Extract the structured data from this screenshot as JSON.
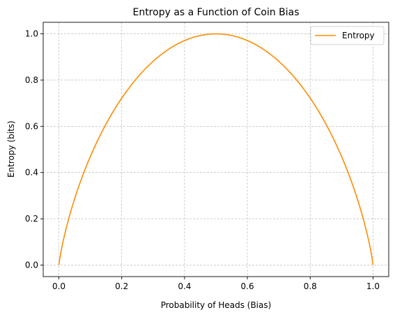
{
  "chart_data": {
    "type": "line",
    "title": "Entropy as a Function of Coin Bias",
    "xlabel": "Probability of Heads (Bias)",
    "ylabel": "Entropy (bits)",
    "xlim": [
      -0.05,
      1.05
    ],
    "ylim": [
      -0.05,
      1.05
    ],
    "xticks": [
      "0.0",
      "0.2",
      "0.4",
      "0.6",
      "0.8",
      "1.0"
    ],
    "yticks": [
      "0.0",
      "0.2",
      "0.4",
      "0.6",
      "0.8",
      "1.0"
    ],
    "grid": true,
    "legend_position": "top-right",
    "series": [
      {
        "name": "Entropy",
        "color": "#ff8c00",
        "x": [
          0.0,
          0.005,
          0.01,
          0.02,
          0.03,
          0.05,
          0.075,
          0.1,
          0.15,
          0.2,
          0.25,
          0.3,
          0.35,
          0.4,
          0.45,
          0.5,
          0.55,
          0.6,
          0.65,
          0.7,
          0.75,
          0.8,
          0.85,
          0.9,
          0.925,
          0.95,
          0.97,
          0.98,
          0.99,
          0.995,
          1.0
        ],
        "y": [
          0.0,
          0.0454,
          0.0808,
          0.1414,
          0.1944,
          0.2864,
          0.3843,
          0.469,
          0.6098,
          0.7219,
          0.8113,
          0.8813,
          0.9341,
          0.971,
          0.9928,
          1.0,
          0.9928,
          0.971,
          0.9341,
          0.8813,
          0.8113,
          0.7219,
          0.6098,
          0.469,
          0.3843,
          0.2864,
          0.1944,
          0.1414,
          0.0808,
          0.0454,
          0.0
        ]
      }
    ]
  }
}
